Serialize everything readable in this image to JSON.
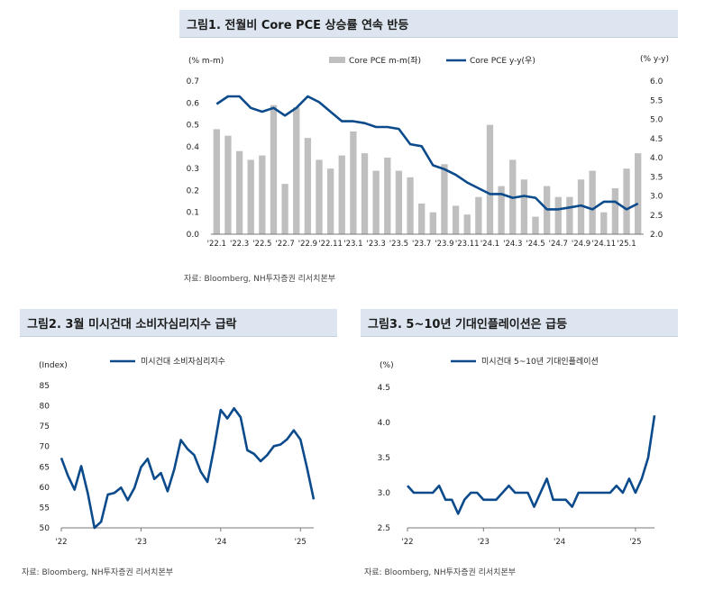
{
  "fig1": {
    "title": "그림1. 전월비 Core PCE 상승률 연속 반등",
    "source": "자료: Bloomberg, NH투자증권 리서치본부",
    "left_unit": "(% m-m)",
    "right_unit": "(% y-y)",
    "colors": {
      "bar": "#bfbfbf",
      "line": "#0b4a8b"
    },
    "chart_data": {
      "type": "bar+line",
      "x_tick_labels": [
        "'22.1",
        "'22.3",
        "'22.5",
        "'22.7",
        "'22.9",
        "'22.11",
        "'23.1",
        "'23.3",
        "'23.5",
        "'23.7",
        "'23.9",
        "'23.11",
        "'24.1",
        "'24.3",
        "'24.5",
        "'24.7",
        "'24.9",
        "'24.11",
        "'25.1"
      ],
      "y_left_ticks": [
        "0.0",
        "0.1",
        "0.2",
        "0.3",
        "0.4",
        "0.5",
        "0.6",
        "0.7"
      ],
      "y_right_ticks": [
        "2.0",
        "2.5",
        "3.0",
        "3.5",
        "4.0",
        "4.5",
        "5.0",
        "5.5",
        "6.0"
      ],
      "ylim_left": [
        0,
        0.7
      ],
      "ylim_right": [
        2.0,
        6.0
      ],
      "series": [
        {
          "name": "Core PCE m-m(좌)",
          "kind": "bar",
          "axis": "left",
          "values": [
            0.48,
            0.45,
            0.38,
            0.34,
            0.36,
            0.59,
            0.23,
            0.58,
            0.44,
            0.34,
            0.3,
            0.36,
            0.47,
            0.37,
            0.29,
            0.35,
            0.29,
            0.26,
            0.14,
            0.1,
            0.32,
            0.13,
            0.09,
            0.17,
            0.5,
            0.22,
            0.34,
            0.25,
            0.08,
            0.22,
            0.17,
            0.17,
            0.25,
            0.29,
            0.1,
            0.21,
            0.3,
            0.37
          ]
        },
        {
          "name": "Core PCE y-y(우)",
          "kind": "line",
          "axis": "right",
          "values": [
            5.4,
            5.6,
            5.6,
            5.3,
            5.2,
            5.3,
            5.1,
            5.3,
            5.6,
            5.45,
            5.2,
            4.95,
            4.95,
            4.9,
            4.8,
            4.8,
            4.75,
            4.35,
            4.3,
            3.8,
            3.7,
            3.55,
            3.35,
            3.2,
            3.05,
            3.05,
            2.95,
            3.0,
            2.95,
            2.65,
            2.65,
            2.7,
            2.75,
            2.65,
            2.85,
            2.85,
            2.65,
            2.8
          ]
        }
      ]
    }
  },
  "fig2": {
    "title": "그림2. 3월 미시건대 소비자심리지수 급락",
    "source": "자료: Bloomberg, NH투자증권 리서치본부",
    "unit": "(Index)",
    "colors": {
      "line": "#0b4a8b"
    },
    "chart_data": {
      "type": "line",
      "x_tick_labels": [
        "'22",
        "'23",
        "'24",
        "'25"
      ],
      "y_ticks": [
        "50",
        "55",
        "60",
        "65",
        "70",
        "75",
        "80",
        "85"
      ],
      "ylim": [
        50,
        85
      ],
      "series": [
        {
          "name": "미시건대 소비자심리지수",
          "values": [
            67.2,
            62.8,
            59.4,
            65.2,
            58.4,
            50.0,
            51.5,
            58.2,
            58.6,
            59.9,
            56.8,
            59.8,
            64.9,
            67.0,
            62.0,
            63.5,
            59.0,
            64.4,
            71.6,
            69.4,
            67.9,
            63.8,
            61.3,
            69.7,
            79.0,
            76.9,
            79.4,
            77.2,
            69.1,
            68.2,
            66.4,
            67.9,
            70.1,
            70.5,
            71.8,
            74.0,
            71.7,
            64.7,
            57.0
          ]
        }
      ]
    }
  },
  "fig3": {
    "title": "그림3. 5~10년 기대인플레이션은 급등",
    "source": "자료: Bloomberg, NH투자증권 리서치본부",
    "unit": "(%)",
    "colors": {
      "line": "#0b4a8b"
    },
    "chart_data": {
      "type": "line",
      "x_tick_labels": [
        "'22",
        "'23",
        "'24",
        "'25"
      ],
      "y_ticks": [
        "2.5",
        "3.0",
        "3.5",
        "4.0",
        "4.5"
      ],
      "ylim": [
        2.5,
        4.5
      ],
      "series": [
        {
          "name": "미시건대 5~10년 기대인플레이션",
          "values": [
            3.1,
            3.0,
            3.0,
            3.0,
            3.0,
            3.1,
            2.9,
            2.9,
            2.7,
            2.9,
            3.0,
            3.0,
            2.9,
            2.9,
            2.9,
            3.0,
            3.1,
            3.0,
            3.0,
            3.0,
            2.8,
            3.0,
            3.2,
            2.9,
            2.9,
            2.9,
            2.8,
            3.0,
            3.0,
            3.0,
            3.0,
            3.0,
            3.0,
            3.1,
            3.0,
            3.2,
            3.0,
            3.2,
            3.5,
            4.1
          ]
        }
      ]
    }
  }
}
